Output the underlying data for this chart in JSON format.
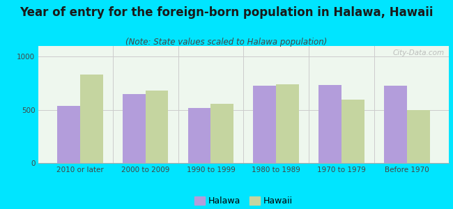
{
  "title": "Year of entry for the foreign-born population in Halawa, Hawaii",
  "subtitle": "(Note: State values scaled to Halawa population)",
  "categories": [
    "2010 or later",
    "2000 to 2009",
    "1990 to 1999",
    "1980 to 1989",
    "1970 to 1979",
    "Before 1970"
  ],
  "halawa_values": [
    540,
    650,
    520,
    730,
    735,
    730
  ],
  "hawaii_values": [
    830,
    680,
    555,
    740,
    595,
    500
  ],
  "halawa_color": "#b39ddb",
  "hawaii_color": "#c5d5a0",
  "background_outer": "#00e5ff",
  "background_inner": "#e8f5e8",
  "ylim": [
    0,
    1100
  ],
  "yticks": [
    0,
    500,
    1000
  ],
  "bar_width": 0.35,
  "legend_halawa": "Halawa",
  "legend_hawaii": "Hawaii",
  "title_fontsize": 12,
  "subtitle_fontsize": 8.5,
  "tick_fontsize": 7.5,
  "legend_fontsize": 9
}
